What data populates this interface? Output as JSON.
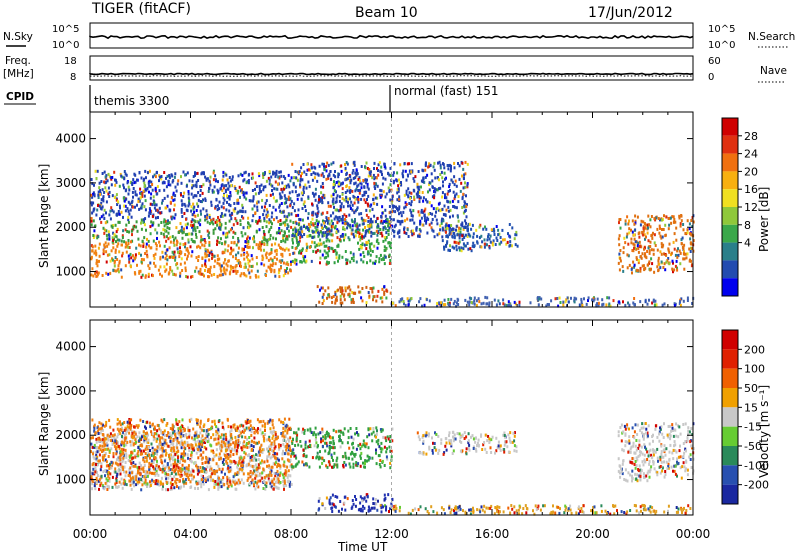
{
  "header": {
    "radar": "TIGER (fitACF)",
    "beam": "Beam 10",
    "date": "17/Jun/2012"
  },
  "strips": {
    "nsky_label": "N.Sky",
    "nsearch_label": "N.Search",
    "freq_label": "Freq.",
    "freq_unit": "[MHz]",
    "nave_label": "Nave",
    "cpid_label": "CPID",
    "nsky_ticks": [
      "10^5",
      "10^0"
    ],
    "freq_ticks": [
      "18",
      "8"
    ],
    "nave_ticks": [
      "60",
      "0"
    ],
    "cpid_segments": [
      {
        "label": "themis 3300",
        "start_hour": 0
      },
      {
        "label": "normal (fast) 151",
        "start_hour": 12
      }
    ]
  },
  "chart_data": [
    {
      "type": "heatmap",
      "panel": "power",
      "xlabel": "Time UT",
      "ylabel": "Slant Range [km]",
      "xlim_hours": [
        0,
        24
      ],
      "ylim": [
        200,
        4600
      ],
      "x_ticks": [
        "00:00",
        "04:00",
        "08:00",
        "12:00",
        "16:00",
        "20:00",
        "00:00"
      ],
      "y_ticks": [
        1000,
        2000,
        3000,
        4000
      ],
      "colorbar": {
        "label": "Power [dB]",
        "ticks": [
          "4",
          "8",
          "12",
          "16",
          "20",
          "24",
          "28"
        ],
        "colors": [
          "#0000ee",
          "#224bb0",
          "#2a7f8a",
          "#3aa84a",
          "#8fc83a",
          "#f0e020",
          "#f8b010",
          "#f07010",
          "#e03010",
          "#d00000"
        ]
      },
      "regions": [
        {
          "name": "main-echo-band",
          "t": [
            0,
            8
          ],
          "range": [
            900,
            1700
          ],
          "color": "#f08010"
        },
        {
          "name": "upper-echo-band",
          "t": [
            0,
            8
          ],
          "range": [
            1700,
            2200
          ],
          "color": "#3a9a3a"
        },
        {
          "name": "scatter-high",
          "t": [
            0,
            8
          ],
          "range": [
            2200,
            3300
          ],
          "color": "#2040b0"
        },
        {
          "name": "rising-arc",
          "t": [
            8,
            12
          ],
          "range": [
            1200,
            2200
          ],
          "color": "#30a040"
        },
        {
          "name": "near-range-echo",
          "t": [
            9,
            12
          ],
          "range": [
            300,
            700
          ],
          "color": "#d06010"
        },
        {
          "name": "streaks",
          "t": [
            8,
            15
          ],
          "range": [
            1800,
            3500
          ],
          "color": "#2040b0"
        },
        {
          "name": "arc-afternoon",
          "t": [
            14,
            17
          ],
          "range": [
            1500,
            2100
          ],
          "color": "#2050b0"
        },
        {
          "name": "late-arc",
          "t": [
            21,
            24
          ],
          "range": [
            1000,
            2300
          ],
          "color": "#e07010"
        },
        {
          "name": "ground-scatter-strip",
          "t": [
            12,
            24
          ],
          "range": [
            250,
            450
          ],
          "color": "#4060b0"
        }
      ]
    },
    {
      "type": "heatmap",
      "panel": "velocity",
      "xlabel": "Time UT",
      "ylabel": "Slant Range [km]",
      "xlim_hours": [
        0,
        24
      ],
      "ylim": [
        200,
        4600
      ],
      "x_ticks": [
        "00:00",
        "04:00",
        "08:00",
        "12:00",
        "16:00",
        "20:00",
        "00:00"
      ],
      "y_ticks": [
        1000,
        2000,
        3000,
        4000
      ],
      "colorbar": {
        "label": "Velocity [m s⁻¹]",
        "ticks": [
          "200",
          "100",
          "50",
          "15",
          "-15",
          "-50",
          "-100",
          "-200"
        ],
        "colors": [
          "#1a28a0",
          "#2850b0",
          "#2a8a5a",
          "#66cc33",
          "#c8c8c8",
          "#f0a000",
          "#f06000",
          "#e02000",
          "#d00000"
        ]
      },
      "regions": [
        {
          "name": "main-echo-band",
          "t": [
            0,
            8
          ],
          "range": [
            800,
            1800
          ],
          "color": "#c8c8c8"
        },
        {
          "name": "upper-echo-band",
          "t": [
            0,
            8
          ],
          "range": [
            1800,
            2200
          ],
          "color": "#c8c8c8"
        },
        {
          "name": "mixed-scatter",
          "t": [
            0,
            8
          ],
          "range": [
            900,
            2400
          ],
          "color": "#f08010"
        },
        {
          "name": "rising-arc",
          "t": [
            8,
            12
          ],
          "range": [
            1300,
            2200
          ],
          "color": "#30a040"
        },
        {
          "name": "near-range-echo",
          "t": [
            9,
            12
          ],
          "range": [
            300,
            700
          ],
          "color": "#2030b0"
        },
        {
          "name": "arc-afternoon",
          "t": [
            13,
            17
          ],
          "range": [
            1600,
            2100
          ],
          "color": "#c8c8c8"
        },
        {
          "name": "late-arc",
          "t": [
            21,
            24
          ],
          "range": [
            1000,
            2300
          ],
          "color": "#c8c8c8"
        },
        {
          "name": "ground-scatter-strip",
          "t": [
            12,
            24
          ],
          "range": [
            250,
            450
          ],
          "color": "#e0a020"
        }
      ]
    }
  ]
}
